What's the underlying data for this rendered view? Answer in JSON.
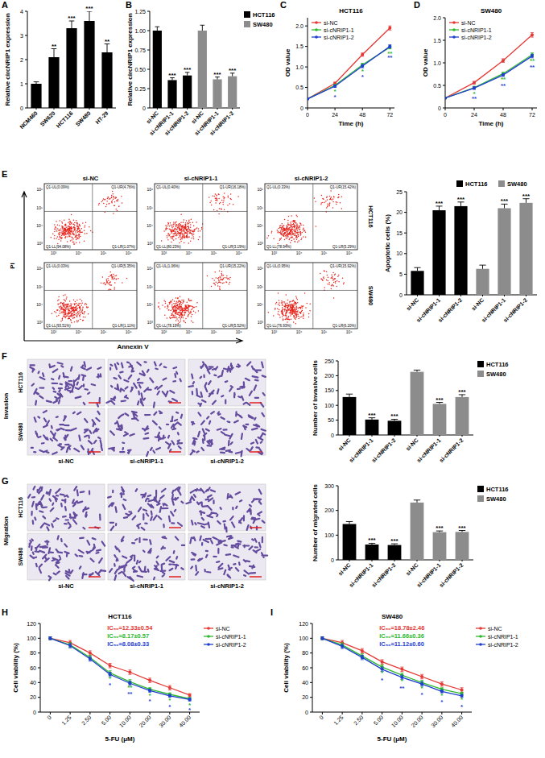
{
  "panel_labels": [
    "A",
    "B",
    "C",
    "D",
    "E",
    "F",
    "G",
    "H",
    "I"
  ],
  "chart_data": [
    {
      "type": "bar",
      "categories": [
        "NCM460",
        "SW620",
        "HCT116",
        "SW480",
        "HT-29"
      ],
      "values": [
        1.0,
        2.1,
        3.3,
        3.6,
        2.3
      ],
      "errors": [
        0.08,
        0.35,
        0.3,
        0.4,
        0.35
      ],
      "significance": [
        null,
        "**",
        "***",
        "***",
        "**"
      ],
      "color": "#000000",
      "y_label": "Relative circNRIP1 expression",
      "ylim": [
        0,
        4
      ],
      "yticks": [
        0,
        1,
        2,
        3,
        4
      ]
    },
    {
      "type": "bar",
      "categories": [
        "si-NC",
        "si-cNRIP1-1",
        "si-cNRIP1-2"
      ],
      "series": [
        {
          "name": "HCT116",
          "color": "#000000",
          "values": [
            1.0,
            0.36,
            0.42
          ],
          "errors": [
            0.05,
            0.03,
            0.04
          ],
          "significance": [
            null,
            "***",
            "***"
          ]
        },
        {
          "name": "SW480",
          "color": "#8c8c8c",
          "values": [
            1.0,
            0.37,
            0.41
          ],
          "errors": [
            0.07,
            0.03,
            0.04
          ],
          "significance": [
            null,
            "***",
            "***"
          ]
        }
      ],
      "y_label": "Relative circNRIP1 expression",
      "ylim": [
        0,
        1.25
      ],
      "yticks": [
        0,
        0.25,
        {
          "value": 0.5,
          "label": "0.50"
        },
        0.75,
        {
          "value": 1,
          "label": "1.00"
        },
        1.25
      ],
      "legend": "right"
    },
    {
      "type": "line",
      "title": "HCT116",
      "x": [
        0,
        24,
        48,
        72
      ],
      "xlim": [
        0,
        76
      ],
      "xticks": [
        0,
        24,
        48,
        72
      ],
      "x_label": "Time (h)",
      "y_label": "OD value",
      "ylim": [
        0,
        2.2
      ],
      "yticks": [
        0,
        0.5,
        {
          "value": 1,
          "label": "1.0"
        },
        1.5,
        {
          "value": 2,
          "label": "2.0"
        }
      ],
      "legend": "upper left",
      "marker": "circle",
      "series": [
        {
          "name": "si-NC",
          "color": "#e53935",
          "values": [
            0.22,
            0.6,
            1.3,
            1.95
          ],
          "errors": [
            0.01,
            0.03,
            0.04,
            0.05
          ]
        },
        {
          "name": "si-cNRIP1-1",
          "color": "#2eb82e",
          "values": [
            0.22,
            0.55,
            1.05,
            1.48
          ],
          "errors": [
            0.01,
            0.03,
            0.04,
            0.04
          ],
          "significance": [
            null,
            "*",
            "*",
            "**"
          ]
        },
        {
          "name": "si-cNRIP1-2",
          "color": "#1f3fd1",
          "values": [
            0.22,
            0.53,
            1.02,
            1.5
          ],
          "errors": [
            0.01,
            0.03,
            0.04,
            0.04
          ],
          "significance": [
            null,
            "*",
            "*",
            "**"
          ]
        }
      ]
    },
    {
      "type": "line",
      "title": "SW480",
      "x": [
        0,
        24,
        48,
        72
      ],
      "xlim": [
        0,
        76
      ],
      "xticks": [
        0,
        24,
        48,
        72
      ],
      "x_label": "Time (h)",
      "y_label": "OD value",
      "ylim": [
        0,
        2
      ],
      "yticks": [
        0,
        0.5,
        {
          "value": 1,
          "label": "1.0"
        },
        1.5,
        {
          "value": 2,
          "label": "2.0"
        }
      ],
      "legend": "upper left",
      "marker": "circle",
      "series": [
        {
          "name": "si-NC",
          "color": "#e53935",
          "values": [
            0.22,
            0.56,
            1.05,
            1.62
          ],
          "errors": [
            0.01,
            0.03,
            0.04,
            0.05
          ]
        },
        {
          "name": "si-cNRIP1-1",
          "color": "#2eb82e",
          "values": [
            0.22,
            0.45,
            0.76,
            1.18
          ],
          "errors": [
            0.01,
            0.03,
            0.03,
            0.04
          ],
          "significance": [
            null,
            "*",
            "**",
            "**"
          ]
        },
        {
          "name": "si-cNRIP1-2",
          "color": "#1f3fd1",
          "values": [
            0.22,
            0.44,
            0.73,
            1.15
          ],
          "errors": [
            0.01,
            0.03,
            0.03,
            0.04
          ],
          "significance": [
            null,
            "**",
            "**",
            "**"
          ]
        }
      ]
    },
    {
      "type": "bar",
      "categories": [
        "si-NC",
        "si-cNRIP1-1",
        "si-cNRIP1-2"
      ],
      "series": [
        {
          "name": "HCT116",
          "color": "#000000",
          "values": [
            5.8,
            20.5,
            21.5
          ],
          "errors": [
            0.8,
            1.0,
            1.0
          ],
          "significance": [
            null,
            "***",
            "***"
          ]
        },
        {
          "name": "SW480",
          "color": "#8c8c8c",
          "values": [
            6.3,
            21.0,
            22.3
          ],
          "errors": [
            0.9,
            1.0,
            1.0
          ],
          "significance": [
            null,
            "***",
            "***"
          ]
        }
      ],
      "y_label": "Apoptotic cells (%)",
      "ylim": [
        0,
        25
      ],
      "yticks": [
        0,
        5,
        10,
        15,
        20,
        25
      ],
      "legend": "top"
    },
    {
      "type": "bar",
      "categories": [
        "si-NC",
        "si-cNRIP1-1",
        "si-cNRIP1-2"
      ],
      "series": [
        {
          "name": "HCT116",
          "color": "#000000",
          "values": [
            128,
            52,
            48
          ],
          "errors": [
            10,
            6,
            5
          ],
          "significance": [
            null,
            "***",
            "***"
          ]
        },
        {
          "name": "SW480",
          "color": "#8c8c8c",
          "values": [
            213,
            105,
            128
          ],
          "errors": [
            6,
            5,
            8
          ],
          "significance": [
            null,
            "***",
            "***"
          ]
        }
      ],
      "y_label": "Number of invasive cells",
      "ylim": [
        0,
        250
      ],
      "yticks": [
        0,
        50,
        100,
        150,
        200,
        250
      ],
      "legend": "right"
    },
    {
      "type": "bar",
      "categories": [
        "si-NC",
        "si-cNRIP1-1",
        "si-cNRIP1-2"
      ],
      "series": [
        {
          "name": "HCT116",
          "color": "#000000",
          "values": [
            145,
            62,
            60
          ],
          "errors": [
            10,
            5,
            5
          ],
          "significance": [
            null,
            "***",
            "***"
          ]
        },
        {
          "name": "SW480",
          "color": "#8c8c8c",
          "values": [
            232,
            112,
            113
          ],
          "errors": [
            10,
            5,
            6
          ],
          "significance": [
            null,
            "***",
            "***"
          ]
        }
      ],
      "y_label": "Number of migrated cells",
      "ylim": [
        0,
        300
      ],
      "yticks": [
        0,
        100,
        200,
        300
      ],
      "legend": "right"
    },
    {
      "type": "line",
      "title": "HCT116",
      "categories": [
        "0",
        "1.25",
        "2.50",
        "5.00",
        "10.00",
        "20.00",
        "30.00",
        "40.00"
      ],
      "x_label": "5-FU (μM)",
      "y_label": "Cell viability (%)",
      "ylim": [
        0,
        120
      ],
      "yticks": [
        0,
        20,
        40,
        60,
        80,
        100,
        120
      ],
      "legend": "right",
      "marker": "circle",
      "annotations": [
        {
          "text": "IC₅₀=12.33±0.54",
          "color": "#e53935"
        },
        {
          "text": "IC₅₀=8.17±0.57",
          "color": "#2eb82e"
        },
        {
          "text": "IC₅₀=8.08±0.33",
          "color": "#1f3fd1"
        }
      ],
      "series": [
        {
          "name": "si-NC",
          "color": "#e53935",
          "values": [
            100,
            94,
            80,
            63,
            54,
            43,
            33,
            23
          ],
          "errors": [
            2,
            3,
            3,
            3,
            3,
            3,
            3,
            2
          ]
        },
        {
          "name": "si-cNRIP1-1",
          "color": "#2eb82e",
          "values": [
            100,
            91,
            74,
            53,
            41,
            31,
            24,
            18
          ],
          "errors": [
            2,
            3,
            3,
            3,
            3,
            2,
            2,
            2
          ],
          "significance": [
            null,
            null,
            null,
            "*",
            "**",
            "*",
            "*",
            "*"
          ]
        },
        {
          "name": "si-cNRIP1-2",
          "color": "#1f3fd1",
          "values": [
            100,
            90,
            72,
            51,
            39,
            29,
            22,
            17
          ],
          "errors": [
            2,
            3,
            3,
            3,
            3,
            2,
            2,
            2
          ],
          "significance": [
            null,
            null,
            null,
            "*",
            "**",
            "*",
            "*",
            "*"
          ]
        }
      ]
    },
    {
      "type": "line",
      "title": "SW480",
      "categories": [
        "0",
        "1.25",
        "2.50",
        "5.00",
        "10.00",
        "20.00",
        "30.00",
        "40.00"
      ],
      "x_label": "5-FU (μM)",
      "y_label": "Cell viability (%)",
      "ylim": [
        0,
        120
      ],
      "yticks": [
        0,
        20,
        40,
        60,
        80,
        100,
        120
      ],
      "legend": "right",
      "marker": "circle",
      "annotations": [
        {
          "text": "IC₅₀=18.78±2.46",
          "color": "#e53935"
        },
        {
          "text": "IC₅₀=11.66±0.36",
          "color": "#2eb82e"
        },
        {
          "text": "IC₅₀=11.12±0.60",
          "color": "#1f3fd1"
        }
      ],
      "series": [
        {
          "name": "si-NC",
          "color": "#e53935",
          "values": [
            100,
            94,
            83,
            68,
            58,
            48,
            38,
            30
          ],
          "errors": [
            2,
            3,
            3,
            3,
            3,
            3,
            3,
            3
          ]
        },
        {
          "name": "si-cNRIP1-1",
          "color": "#2eb82e",
          "values": [
            100,
            91,
            76,
            61,
            50,
            40,
            31,
            25
          ],
          "errors": [
            2,
            3,
            3,
            3,
            3,
            3,
            2,
            2
          ],
          "significance": [
            null,
            null,
            null,
            "*",
            "*",
            "*",
            "*",
            "*"
          ]
        },
        {
          "name": "si-cNRIP1-2",
          "color": "#1f3fd1",
          "values": [
            100,
            89,
            74,
            58,
            47,
            38,
            28,
            22
          ],
          "errors": [
            2,
            3,
            3,
            3,
            3,
            3,
            2,
            2
          ],
          "significance": [
            null,
            null,
            null,
            "*",
            "**",
            "*",
            "*",
            "*"
          ]
        }
      ]
    }
  ],
  "flow_cytometry": {
    "x_label": "Annexin V",
    "y_label": "PI",
    "ticks": [
      "10³",
      "10⁴",
      "10⁵",
      "10⁶"
    ],
    "columns": [
      "si-NC",
      "si-cNRIP1-1",
      "si-cNRIP1-2"
    ],
    "rows": [
      "HCT116",
      "SW480"
    ],
    "quadrants": [
      [
        [
          "Q1-UL(0.09%)",
          "Q1-UR(4.76%)",
          "Q1-LL(94.08%)",
          "Q1-LR(1.07%)"
        ],
        [
          "Q1-UL(0.40%)",
          "Q1-UR(16.18%)",
          "Q1-LL(80.23%)",
          "Q1-LR(3.19%)"
        ],
        [
          "Q1-UL(0.33%)",
          "Q1-UR(15.42%)",
          "Q1-LL(78.94%)",
          "Q1-LR(5.29%)"
        ]
      ],
      [
        [
          "Q1-UL(0.03%)",
          "Q1-UR(5.35%)",
          "Q1-LL(93.51%)",
          "Q1-LR(1.11%)"
        ],
        [
          "Q1-UL(1.06%)",
          "Q1-UR(15.22%)",
          "Q1-LL(78.19%)",
          "Q1-LR(5.52%)"
        ],
        [
          "Q1-UL(0.95%)",
          "Q1-UR(15.92%)",
          "Q1-LL(76.93%)",
          "Q1-LR(6.20%)"
        ]
      ]
    ]
  },
  "transwell": [
    {
      "label": "Invasion",
      "rows": [
        "HCT116",
        "SW480"
      ],
      "columns": [
        "si-NC",
        "si-cNRIP1-1",
        "si-cNRIP1-2"
      ]
    },
    {
      "label": "Migration",
      "rows": [
        "HCT116",
        "SW480"
      ],
      "columns": [
        "si-NC",
        "si-cNRIP1-1",
        "si-cNRIP1-2"
      ]
    }
  ]
}
